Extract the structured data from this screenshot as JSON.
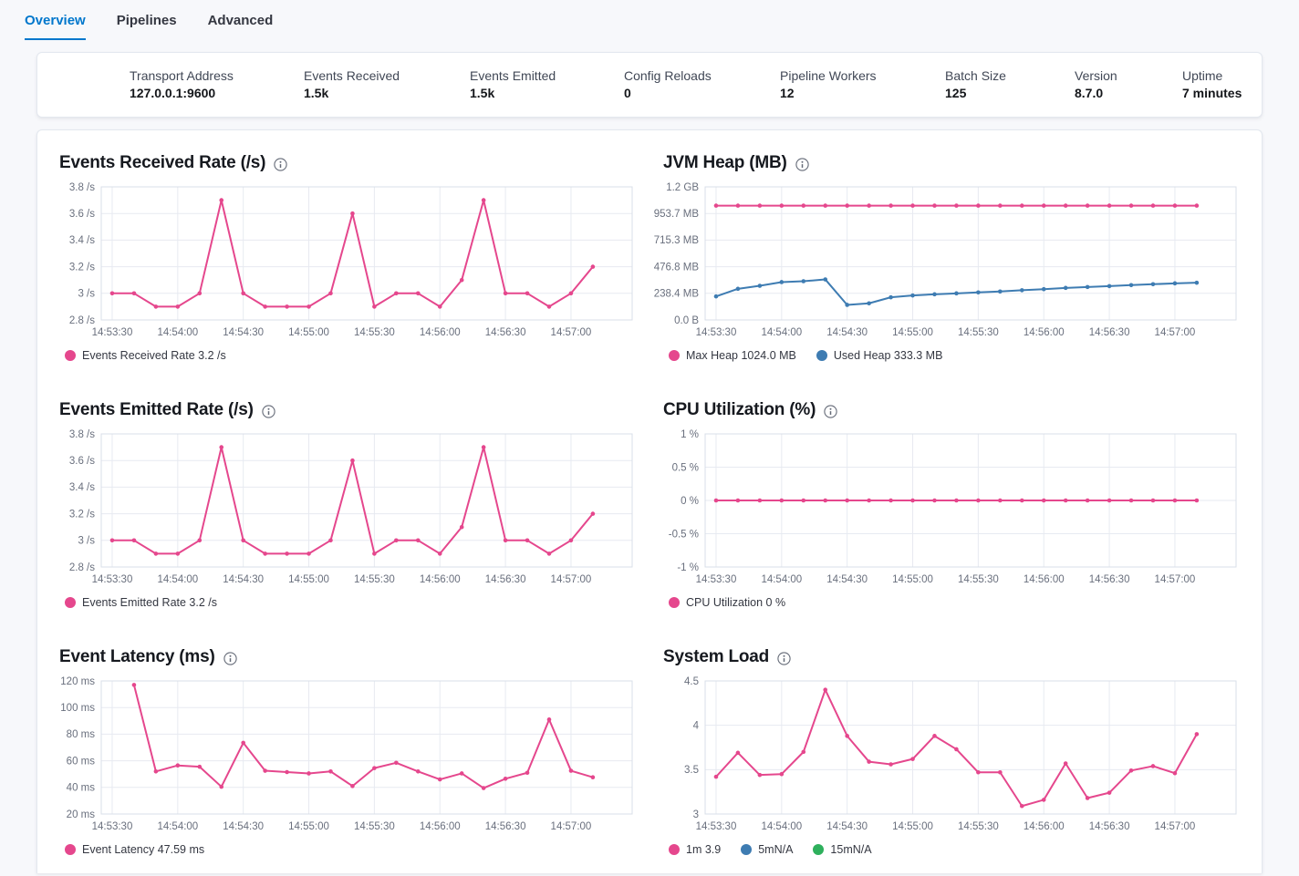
{
  "colors": {
    "accent": "#0077cc",
    "pink": "#e5478d",
    "blue": "#3e7cb2",
    "green": "#2eb05c"
  },
  "tabs": [
    {
      "label": "Overview",
      "active": true
    },
    {
      "label": "Pipelines",
      "active": false
    },
    {
      "label": "Advanced",
      "active": false
    }
  ],
  "summary": {
    "items": [
      {
        "label": "Transport Address",
        "value": "127.0.0.1:9600"
      },
      {
        "label": "Events Received",
        "value": "1.5k"
      },
      {
        "label": "Events Emitted",
        "value": "1.5k"
      },
      {
        "label": "Config Reloads",
        "value": "0"
      },
      {
        "label": "Pipeline Workers",
        "value": "12"
      },
      {
        "label": "Batch Size",
        "value": "125"
      },
      {
        "label": "Version",
        "value": "8.7.0"
      },
      {
        "label": "Uptime",
        "value": "7 minutes"
      }
    ]
  },
  "x_axis": {
    "tick_labels": [
      "14:53:30",
      "14:54:00",
      "14:54:30",
      "14:55:00",
      "14:55:30",
      "14:56:00",
      "14:56:30",
      "14:57:00"
    ],
    "tick_indices": [
      0,
      3,
      6,
      9,
      12,
      15,
      18,
      21
    ],
    "domain": [
      -0.5,
      23.8
    ]
  },
  "chart_data": [
    {
      "type": "line",
      "title": "Events Received Rate (/s)",
      "ylim": [
        2.8,
        3.8
      ],
      "y_ticks": [
        {
          "v": 2.8,
          "label": "2.8 /s"
        },
        {
          "v": 3.0,
          "label": "3 /s"
        },
        {
          "v": 3.2,
          "label": "3.2 /s"
        },
        {
          "v": 3.4,
          "label": "3.4 /s"
        },
        {
          "v": 3.6,
          "label": "3.6 /s"
        },
        {
          "v": 3.8,
          "label": "3.8 /s"
        }
      ],
      "series": [
        {
          "name": "Events Received Rate",
          "color": "#e5478d",
          "points": [
            [
              0,
              3
            ],
            [
              1,
              3
            ],
            [
              2,
              2.9
            ],
            [
              3,
              2.9
            ],
            [
              4,
              3
            ],
            [
              5,
              3.7
            ],
            [
              6,
              3
            ],
            [
              7,
              2.9
            ],
            [
              8,
              2.9
            ],
            [
              9,
              2.9
            ],
            [
              10,
              3
            ],
            [
              11,
              3.6
            ],
            [
              12,
              2.9
            ],
            [
              13,
              3
            ],
            [
              14,
              3
            ],
            [
              15,
              2.9
            ],
            [
              16,
              3.1
            ],
            [
              17,
              3.7
            ],
            [
              18,
              3
            ],
            [
              19,
              3
            ],
            [
              20,
              2.9
            ],
            [
              21,
              3
            ],
            [
              22,
              3.2
            ]
          ]
        }
      ],
      "legend": [
        {
          "label": "Events Received Rate 3.2 /s",
          "color": "#e5478d"
        }
      ]
    },
    {
      "type": "line",
      "title": "JVM Heap (MB)",
      "ylim": [
        0,
        1192.1
      ],
      "y_ticks": [
        {
          "v": 0,
          "label": "0.0 B"
        },
        {
          "v": 238.42,
          "label": "238.4 MB"
        },
        {
          "v": 476.84,
          "label": "476.8 MB"
        },
        {
          "v": 715.26,
          "label": "715.3 MB"
        },
        {
          "v": 953.67,
          "label": "953.7 MB"
        },
        {
          "v": 1192.1,
          "label": "1.2 GB"
        }
      ],
      "series": [
        {
          "name": "Max Heap",
          "color": "#e5478d",
          "points": [
            [
              0,
              1024
            ],
            [
              1,
              1024
            ],
            [
              2,
              1024
            ],
            [
              3,
              1024
            ],
            [
              4,
              1024
            ],
            [
              5,
              1024
            ],
            [
              6,
              1024
            ],
            [
              7,
              1024
            ],
            [
              8,
              1024
            ],
            [
              9,
              1024
            ],
            [
              10,
              1024
            ],
            [
              11,
              1024
            ],
            [
              12,
              1024
            ],
            [
              13,
              1024
            ],
            [
              14,
              1024
            ],
            [
              15,
              1024
            ],
            [
              16,
              1024
            ],
            [
              17,
              1024
            ],
            [
              18,
              1024
            ],
            [
              19,
              1024
            ],
            [
              20,
              1024
            ],
            [
              21,
              1024
            ],
            [
              22,
              1024
            ]
          ]
        },
        {
          "name": "Used Heap",
          "color": "#3e7cb2",
          "points": [
            [
              0,
              211
            ],
            [
              1,
              279
            ],
            [
              2,
              306
            ],
            [
              3,
              339
            ],
            [
              4,
              347
            ],
            [
              5,
              363
            ],
            [
              6,
              135
            ],
            [
              7,
              149
            ],
            [
              8,
              203
            ],
            [
              9,
              219
            ],
            [
              10,
              230
            ],
            [
              11,
              238
            ],
            [
              12,
              247
            ],
            [
              13,
              255
            ],
            [
              14,
              266
            ],
            [
              15,
              276
            ],
            [
              16,
              287
            ],
            [
              17,
              295
            ],
            [
              18,
              303
            ],
            [
              19,
              312
            ],
            [
              20,
              320
            ],
            [
              21,
              328
            ],
            [
              22,
              333.3
            ]
          ]
        }
      ],
      "legend": [
        {
          "label": "Max Heap 1024.0 MB",
          "color": "#e5478d"
        },
        {
          "label": "Used Heap 333.3 MB",
          "color": "#3e7cb2"
        }
      ]
    },
    {
      "type": "line",
      "title": "Events Emitted Rate (/s)",
      "ylim": [
        2.8,
        3.8
      ],
      "y_ticks": [
        {
          "v": 2.8,
          "label": "2.8 /s"
        },
        {
          "v": 3.0,
          "label": "3 /s"
        },
        {
          "v": 3.2,
          "label": "3.2 /s"
        },
        {
          "v": 3.4,
          "label": "3.4 /s"
        },
        {
          "v": 3.6,
          "label": "3.6 /s"
        },
        {
          "v": 3.8,
          "label": "3.8 /s"
        }
      ],
      "series": [
        {
          "name": "Events Emitted Rate",
          "color": "#e5478d",
          "points": [
            [
              0,
              3
            ],
            [
              1,
              3
            ],
            [
              2,
              2.9
            ],
            [
              3,
              2.9
            ],
            [
              4,
              3
            ],
            [
              5,
              3.7
            ],
            [
              6,
              3
            ],
            [
              7,
              2.9
            ],
            [
              8,
              2.9
            ],
            [
              9,
              2.9
            ],
            [
              10,
              3
            ],
            [
              11,
              3.6
            ],
            [
              12,
              2.9
            ],
            [
              13,
              3
            ],
            [
              14,
              3
            ],
            [
              15,
              2.9
            ],
            [
              16,
              3.1
            ],
            [
              17,
              3.7
            ],
            [
              18,
              3
            ],
            [
              19,
              3
            ],
            [
              20,
              2.9
            ],
            [
              21,
              3
            ],
            [
              22,
              3.2
            ]
          ]
        }
      ],
      "legend": [
        {
          "label": "Events Emitted Rate 3.2 /s",
          "color": "#e5478d"
        }
      ]
    },
    {
      "type": "line",
      "title": "CPU Utilization (%)",
      "ylim": [
        -1,
        1
      ],
      "y_ticks": [
        {
          "v": -1,
          "label": "-1 %"
        },
        {
          "v": -0.5,
          "label": "-0.5 %"
        },
        {
          "v": 0,
          "label": "0 %"
        },
        {
          "v": 0.5,
          "label": "0.5 %"
        },
        {
          "v": 1,
          "label": "1 %"
        }
      ],
      "series": [
        {
          "name": "CPU Utilization",
          "color": "#e5478d",
          "points": [
            [
              0,
              0
            ],
            [
              1,
              0
            ],
            [
              2,
              0
            ],
            [
              3,
              0
            ],
            [
              4,
              0
            ],
            [
              5,
              0
            ],
            [
              6,
              0
            ],
            [
              7,
              0
            ],
            [
              8,
              0
            ],
            [
              9,
              0
            ],
            [
              10,
              0
            ],
            [
              11,
              0
            ],
            [
              12,
              0
            ],
            [
              13,
              0
            ],
            [
              14,
              0
            ],
            [
              15,
              0
            ],
            [
              16,
              0
            ],
            [
              17,
              0
            ],
            [
              18,
              0
            ],
            [
              19,
              0
            ],
            [
              20,
              0
            ],
            [
              21,
              0
            ],
            [
              22,
              0
            ]
          ]
        }
      ],
      "legend": [
        {
          "label": "CPU Utilization 0 %",
          "color": "#e5478d"
        }
      ]
    },
    {
      "type": "line",
      "title": "Event Latency (ms)",
      "ylim": [
        20,
        120
      ],
      "y_ticks": [
        {
          "v": 20,
          "label": "20 ms"
        },
        {
          "v": 40,
          "label": "40 ms"
        },
        {
          "v": 60,
          "label": "60 ms"
        },
        {
          "v": 80,
          "label": "80 ms"
        },
        {
          "v": 100,
          "label": "100 ms"
        },
        {
          "v": 120,
          "label": "120 ms"
        }
      ],
      "series": [
        {
          "name": "Event Latency",
          "color": "#e5478d",
          "points": [
            [
              1,
              117
            ],
            [
              2,
              52
            ],
            [
              3,
              56.5
            ],
            [
              4,
              55.5
            ],
            [
              5,
              40.5
            ],
            [
              6,
              73.5
            ],
            [
              7,
              52.5
            ],
            [
              8,
              51.5
            ],
            [
              9,
              50.5
            ],
            [
              10,
              52
            ],
            [
              11,
              41
            ],
            [
              12,
              54.5
            ],
            [
              13,
              58.5
            ],
            [
              14,
              52
            ],
            [
              15,
              46
            ],
            [
              16,
              50.5
            ],
            [
              17,
              39.5
            ],
            [
              18,
              46.5
            ],
            [
              19,
              51
            ],
            [
              20,
              91
            ],
            [
              21,
              52.5
            ],
            [
              22,
              47.59
            ]
          ]
        }
      ],
      "legend": [
        {
          "label": "Event Latency 47.59 ms",
          "color": "#e5478d"
        }
      ]
    },
    {
      "type": "line",
      "title": "System Load",
      "ylim": [
        3,
        4.5
      ],
      "y_ticks": [
        {
          "v": 3,
          "label": "3"
        },
        {
          "v": 3.5,
          "label": "3.5"
        },
        {
          "v": 4,
          "label": "4"
        },
        {
          "v": 4.5,
          "label": "4.5"
        }
      ],
      "series": [
        {
          "name": "1m",
          "color": "#e5478d",
          "points": [
            [
              0,
              3.42
            ],
            [
              1,
              3.69
            ],
            [
              2,
              3.44
            ],
            [
              3,
              3.45
            ],
            [
              4,
              3.7
            ],
            [
              5,
              4.4
            ],
            [
              6,
              3.88
            ],
            [
              7,
              3.59
            ],
            [
              8,
              3.56
            ],
            [
              9,
              3.62
            ],
            [
              10,
              3.88
            ],
            [
              11,
              3.73
            ],
            [
              12,
              3.47
            ],
            [
              13,
              3.47
            ],
            [
              14,
              3.09
            ],
            [
              15,
              3.16
            ],
            [
              16,
              3.57
            ],
            [
              17,
              3.18
            ],
            [
              18,
              3.24
            ],
            [
              19,
              3.49
            ],
            [
              20,
              3.54
            ],
            [
              21,
              3.46
            ],
            [
              22,
              3.9
            ]
          ]
        }
      ],
      "legend": [
        {
          "label": "1m 3.9",
          "color": "#e5478d"
        },
        {
          "label": "5mN/A",
          "color": "#3e7cb2"
        },
        {
          "label": "15mN/A",
          "color": "#2eb05c"
        }
      ]
    }
  ]
}
